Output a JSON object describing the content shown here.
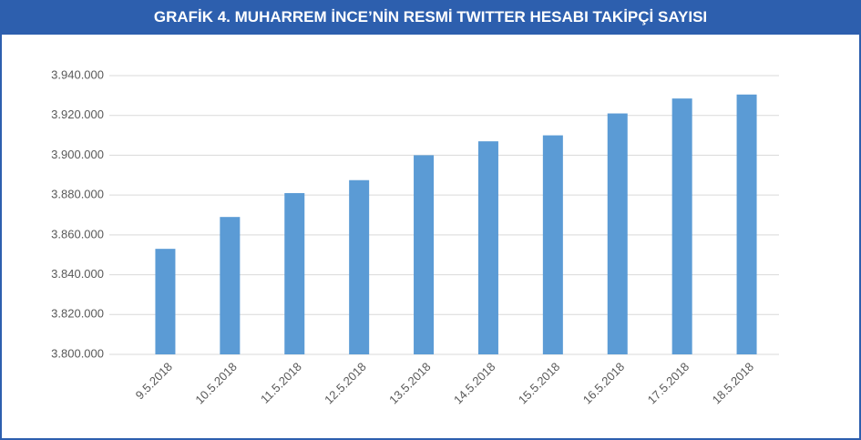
{
  "chart_data": {
    "type": "bar",
    "title": "GRAFİK 4. MUHARREM İNCE’NİN RESMİ TWITTER HESABI TAKİPÇİ SAYISI",
    "categories": [
      "9.5.2018",
      "10.5.2018",
      "11.5.2018",
      "12.5.2018",
      "13.5.2018",
      "14.5.2018",
      "15.5.2018",
      "16.5.2018",
      "17.5.2018",
      "18.5.2018"
    ],
    "values": [
      3853000,
      3869000,
      3881000,
      3887500,
      3900000,
      3907000,
      3910000,
      3921000,
      3928500,
      3930500
    ],
    "color": "#5b9bd5",
    "ylim": [
      3800000,
      3940000
    ],
    "yticks": [
      {
        "value": 3800000,
        "label": "3.800.000"
      },
      {
        "value": 3820000,
        "label": "3.820.000"
      },
      {
        "value": 3840000,
        "label": "3.840.000"
      },
      {
        "value": 3860000,
        "label": "3.860.000"
      },
      {
        "value": 3880000,
        "label": "3.880.000"
      },
      {
        "value": 3900000,
        "label": "3.900.000"
      },
      {
        "value": 3920000,
        "label": "3.920.000"
      },
      {
        "value": 3940000,
        "label": "3.940.000"
      }
    ],
    "grid": true
  }
}
